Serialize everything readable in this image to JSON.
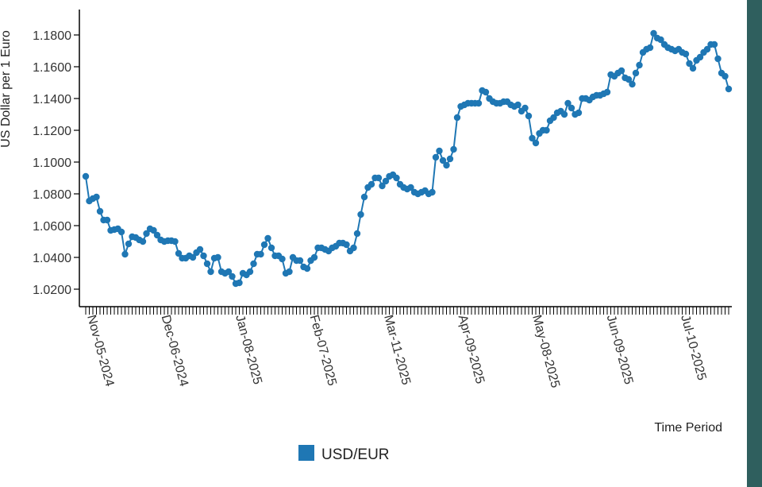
{
  "chart_data": {
    "type": "line",
    "xlabel": "Time Period",
    "ylabel": "US Dollar per 1 Euro",
    "ylim": [
      1.011,
      1.196
    ],
    "yticks": [
      "1.0200",
      "1.0400",
      "1.0600",
      "1.0800",
      "1.1000",
      "1.1200",
      "1.1400",
      "1.1600",
      "1.1800"
    ],
    "xtick_labels": [
      "Nov-05-2024",
      "Dec-06-2024",
      "Jan-08-2025",
      "Feb-07-2025",
      "Mar-11-2025",
      "Apr-09-2025",
      "May-08-2025",
      "Jun-09-2025",
      "Jul-10-2025"
    ],
    "legend": {
      "position": "bottom-center",
      "entries": [
        "USD/EUR"
      ]
    },
    "grid": false,
    "series": [
      {
        "name": "USD/EUR",
        "color": "#1f77b4",
        "values": [
          1.091,
          1.0755,
          1.077,
          1.078,
          1.069,
          1.0635,
          1.0635,
          1.057,
          1.0575,
          1.058,
          1.056,
          1.042,
          1.0485,
          1.053,
          1.0525,
          1.051,
          1.05,
          1.055,
          1.058,
          1.057,
          1.054,
          1.051,
          1.05,
          1.0505,
          1.0505,
          1.05,
          1.0425,
          1.0395,
          1.0395,
          1.041,
          1.04,
          1.043,
          1.045,
          1.041,
          1.036,
          1.031,
          1.0395,
          1.04,
          1.031,
          1.03,
          1.031,
          1.028,
          1.0235,
          1.024,
          1.03,
          1.029,
          1.031,
          1.036,
          1.042,
          1.042,
          1.048,
          1.052,
          1.046,
          1.041,
          1.041,
          1.039,
          1.03,
          1.031,
          1.04,
          1.038,
          1.038,
          1.034,
          1.033,
          1.038,
          1.04,
          1.046,
          1.046,
          1.045,
          1.044,
          1.046,
          1.047,
          1.049,
          1.049,
          1.048,
          1.044,
          1.046,
          1.055,
          1.067,
          1.078,
          1.084,
          1.086,
          1.09,
          1.09,
          1.085,
          1.088,
          1.091,
          1.092,
          1.09,
          1.086,
          1.084,
          1.083,
          1.084,
          1.081,
          1.08,
          1.081,
          1.082,
          1.08,
          1.081,
          1.103,
          1.107,
          1.101,
          1.098,
          1.102,
          1.108,
          1.128,
          1.135,
          1.136,
          1.137,
          1.137,
          1.137,
          1.137,
          1.145,
          1.144,
          1.14,
          1.138,
          1.137,
          1.137,
          1.138,
          1.138,
          1.136,
          1.135,
          1.136,
          1.132,
          1.134,
          1.129,
          1.115,
          1.112,
          1.118,
          1.12,
          1.12,
          1.126,
          1.128,
          1.131,
          1.132,
          1.13,
          1.137,
          1.134,
          1.13,
          1.131,
          1.14,
          1.14,
          1.139,
          1.141,
          1.142,
          1.142,
          1.143,
          1.144,
          1.155,
          1.154,
          1.156,
          1.1575,
          1.153,
          1.152,
          1.149,
          1.156,
          1.161,
          1.169,
          1.171,
          1.172,
          1.181,
          1.178,
          1.177,
          1.174,
          1.172,
          1.171,
          1.17,
          1.171,
          1.169,
          1.168,
          1.162,
          1.159,
          1.164,
          1.166,
          1.169,
          1.171,
          1.174,
          1.174,
          1.165,
          1.156,
          1.154,
          1.146
        ]
      }
    ]
  }
}
